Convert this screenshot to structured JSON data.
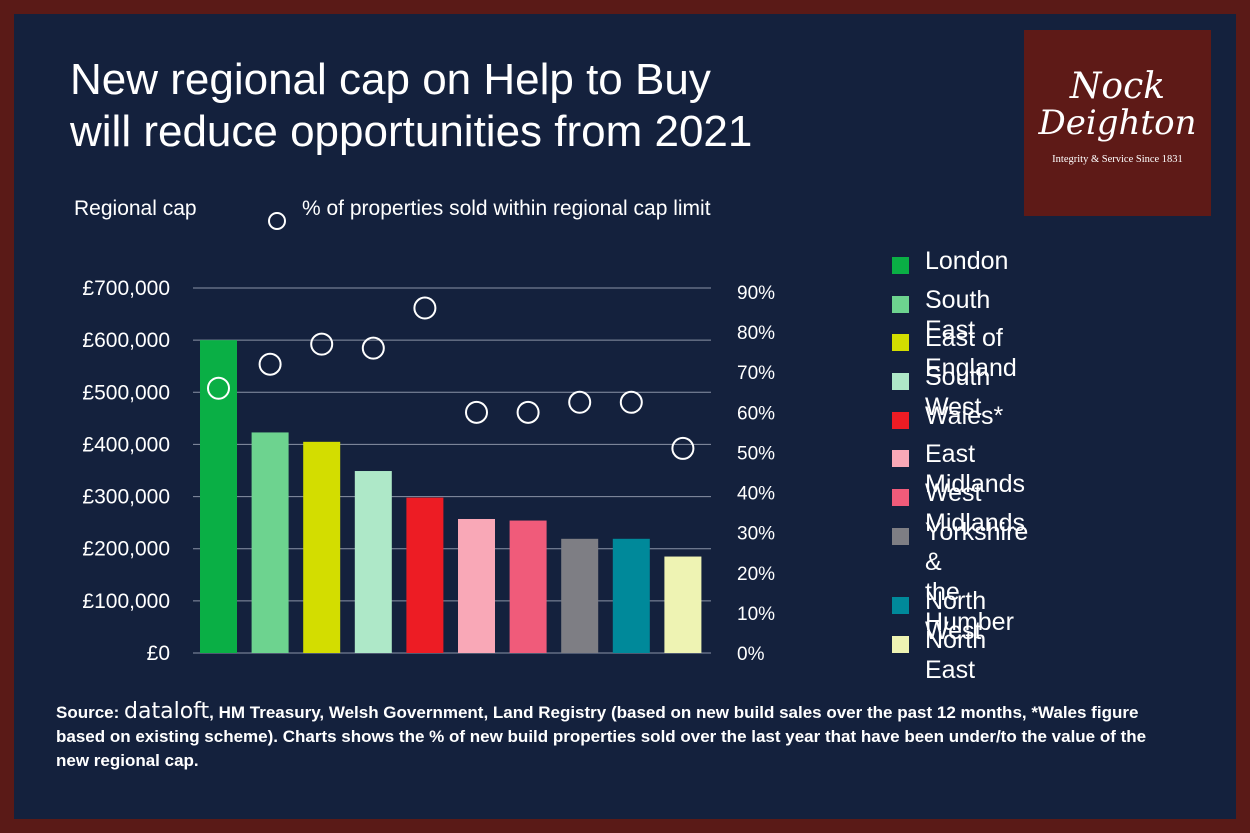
{
  "title": {
    "line1": "New regional cap on Help to Buy",
    "line2": "will reduce opportunities from 2021"
  },
  "logo": {
    "line1": "Nock",
    "line2": "Deighton",
    "tagline": "Integrity & Service Since 1831"
  },
  "legend_top": {
    "bars_label": "Regional cap",
    "points_label": "% of properties sold within regional cap limit"
  },
  "chart_data": {
    "type": "bar",
    "categories": [
      "London",
      "South East",
      "East of England",
      "South West",
      "Wales*",
      "East Midlands",
      "West Midlands",
      "Yorkshire & the Humber",
      "North West",
      "North East"
    ],
    "series": [
      {
        "name": "Regional cap",
        "type": "bar",
        "axis": "left",
        "values": [
          600000,
          423000,
          405000,
          349000,
          298000,
          257000,
          254000,
          219000,
          219000,
          185000
        ]
      },
      {
        "name": "% of properties sold within regional cap limit",
        "type": "scatter",
        "axis": "right",
        "values": [
          66,
          72,
          77,
          76,
          86,
          60,
          60,
          62.5,
          62.5,
          51
        ]
      }
    ],
    "left_axis": {
      "ylim": [
        0,
        700000
      ],
      "ticks": [
        "£0",
        "£100,000",
        "£200,000",
        "£300,000",
        "£400,000",
        "£500,000",
        "£600,000",
        "£700,000"
      ]
    },
    "right_axis": {
      "ylim": [
        0,
        90
      ],
      "ticks": [
        "0%",
        "10%",
        "20%",
        "30%",
        "40%",
        "50%",
        "60%",
        "70%",
        "80%",
        "90%"
      ]
    },
    "grid": true,
    "legend_placement": "right",
    "colors": [
      "#0aaf45",
      "#6dd38f",
      "#d3dd00",
      "#aee8c8",
      "#ed1c24",
      "#f9a8b7",
      "#f05b7a",
      "#7e7e84",
      "#00899a",
      "#eef3b3"
    ]
  },
  "legend": [
    {
      "label": "London",
      "color": "#0aaf45"
    },
    {
      "label": "South East",
      "color": "#6dd38f"
    },
    {
      "label": "East of England",
      "color": "#d3dd00"
    },
    {
      "label": "South West",
      "color": "#aee8c8"
    },
    {
      "label": "Wales*",
      "color": "#ed1c24"
    },
    {
      "label": "East Midlands",
      "color": "#f9a8b7"
    },
    {
      "label": "West Midlands",
      "color": "#f05b7a"
    },
    {
      "label": "Yorkshire &\nthe Humber",
      "color": "#7e7e84"
    },
    {
      "label": "North West",
      "color": "#00899a"
    },
    {
      "label": "North East",
      "color": "#eef3b3"
    }
  ],
  "source": {
    "prefix": "Source: ",
    "brand": "dataloft",
    "text": ", HM Treasury,  Welsh Government, Land Registry (based on new build sales over the past 12 months, *Wales figure based on existing scheme). Charts shows the % of new build properties sold over the last year that have been under/to the value of the new regional cap."
  }
}
